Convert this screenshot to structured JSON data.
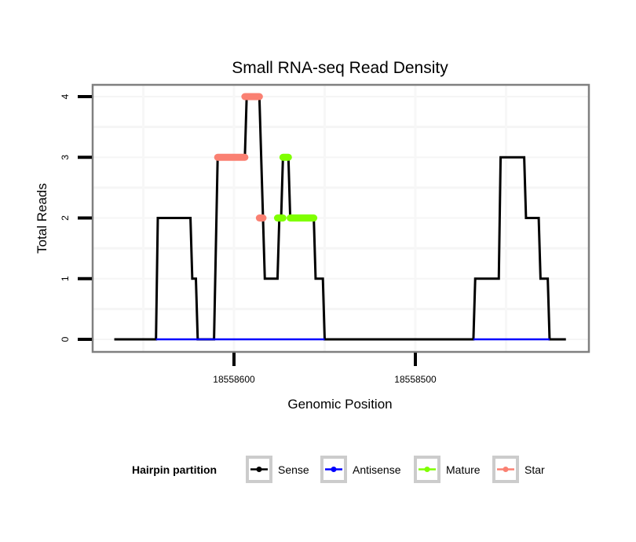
{
  "chart_data": {
    "type": "line",
    "title": "Small RNA-seq Read Density",
    "xlabel": "Genomic Position",
    "ylabel": "Total Reads",
    "x_reversed": true,
    "xlim": [
      18558668,
      18558400
    ],
    "ylim": [
      0,
      4
    ],
    "x_ticks": [
      {
        "value": 18558600,
        "label": "18558600"
      },
      {
        "value": 18558500,
        "label": "18558500"
      }
    ],
    "y_ticks": [
      {
        "value": 0,
        "label": "0"
      },
      {
        "value": 1,
        "label": "1"
      },
      {
        "value": 2,
        "label": "2"
      },
      {
        "value": 3,
        "label": "3"
      },
      {
        "value": 4,
        "label": "4"
      }
    ],
    "grid": true,
    "legend": {
      "title": "Hairpin partition",
      "placement": "bottom",
      "entries": [
        {
          "name": "Sense",
          "color": "#000000"
        },
        {
          "name": "Antisense",
          "color": "#0000FF"
        },
        {
          "name": "Mature",
          "color": "#7FFF00"
        },
        {
          "name": "Star",
          "color": "#FA8072"
        }
      ]
    },
    "series": [
      {
        "name": "Sense",
        "color": "#000000",
        "style": "line",
        "points": [
          [
            18558666,
            0
          ],
          [
            18558643,
            0
          ],
          [
            18558642,
            2
          ],
          [
            18558624,
            2
          ],
          [
            18558623,
            1
          ],
          [
            18558621,
            1
          ],
          [
            18558620,
            0
          ],
          [
            18558611,
            0
          ],
          [
            18558609,
            3
          ],
          [
            18558594,
            3
          ],
          [
            18558593,
            4
          ],
          [
            18558586,
            4
          ],
          [
            18558584,
            2
          ],
          [
            18558583,
            1
          ],
          [
            18558576,
            1
          ],
          [
            18558575,
            2
          ],
          [
            18558574,
            2
          ],
          [
            18558573,
            3
          ],
          [
            18558570,
            3
          ],
          [
            18558569,
            2
          ],
          [
            18558556,
            2
          ],
          [
            18558555,
            1
          ],
          [
            18558551,
            1
          ],
          [
            18558550,
            0
          ],
          [
            18558468,
            0
          ],
          [
            18558467,
            1
          ],
          [
            18558454,
            1
          ],
          [
            18558453,
            3
          ],
          [
            18558440,
            3
          ],
          [
            18558439,
            2
          ],
          [
            18558432,
            2
          ],
          [
            18558431,
            1
          ],
          [
            18558427,
            1
          ],
          [
            18558426,
            0
          ],
          [
            18558417,
            0
          ]
        ]
      },
      {
        "name": "Antisense",
        "color": "#0000FF",
        "style": "line",
        "segments": [
          [
            [
              18558643,
              0
            ],
            [
              18558550,
              0
            ]
          ],
          [
            [
              18558468,
              0
            ],
            [
              18558426,
              0
            ]
          ]
        ]
      },
      {
        "name": "Mature",
        "color": "#7FFF00",
        "style": "points",
        "segments": [
          [
            [
              18558576,
              2
            ],
            [
              18558573,
              2
            ]
          ],
          [
            [
              18558573,
              3
            ],
            [
              18558570,
              3
            ]
          ],
          [
            [
              18558569,
              2
            ],
            [
              18558556,
              2
            ]
          ]
        ]
      },
      {
        "name": "Star",
        "color": "#FA8072",
        "style": "points",
        "segments": [
          [
            [
              18558609,
              3
            ],
            [
              18558594,
              3
            ]
          ],
          [
            [
              18558594,
              4
            ],
            [
              18558586,
              4
            ]
          ],
          [
            [
              18558586,
              2
            ],
            [
              18558584,
              2
            ]
          ]
        ]
      }
    ]
  }
}
